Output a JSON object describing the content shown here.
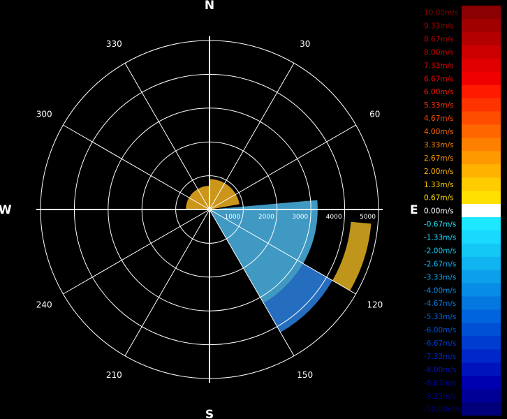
{
  "chart_data": {
    "type": "polar-heatmap",
    "cardinals": [
      "N",
      "E",
      "S",
      "W"
    ],
    "azimuth_labels": [
      "30",
      "60",
      "120",
      "150",
      "210",
      "240",
      "300",
      "330"
    ],
    "range_rings": [
      "1000",
      "2000",
      "3000",
      "4000",
      "5000"
    ],
    "range_max": 5000,
    "legend": {
      "labels": [
        "10.00m/s",
        "9.33m/s",
        "8.67m/s",
        "8.00m/s",
        "7.33m/s",
        "6.67m/s",
        "6.00m/s",
        "5.33m/s",
        "4.67m/s",
        "4.00m/s",
        "3.33m/s",
        "2.67m/s",
        "2.00m/s",
        "1.33m/s",
        "0.67m/s",
        "0.00m/s",
        "-0.67m/s",
        "-1.33m/s",
        "-2.00m/s",
        "-2.67m/s",
        "-3.33m/s",
        "-4.00m/s",
        "-4.67m/s",
        "-5.33m/s",
        "-6.00m/s",
        "-6.67m/s",
        "-7.33m/s",
        "-8.00m/s",
        "-8.67m/s",
        "-9.33m/s",
        "-10.00m/s"
      ],
      "colors": [
        "#8b0000",
        "#a00000",
        "#b40000",
        "#cc0000",
        "#e00000",
        "#f00000",
        "#ff1a00",
        "#ff3300",
        "#ff4d00",
        "#ff6600",
        "#ff8000",
        "#ff9900",
        "#ffb300",
        "#ffcc00",
        "#ffe000",
        "#ffffff",
        "#1ee8ff",
        "#1ad9ff",
        "#14c8f5",
        "#10b4f0",
        "#0ca0eb",
        "#088ce6",
        "#0478e0",
        "#0064dc",
        "#0050d6",
        "#003cd0",
        "#0028c8",
        "#0014bd",
        "#0000b0",
        "#000096",
        "#00007a"
      ]
    },
    "regions": [
      {
        "name": "north-receding-echo",
        "color": "#f0b020",
        "az": [
          270,
          360
        ],
        "r": [
          0,
          700
        ]
      },
      {
        "name": "north-receding-echo-2",
        "color": "#f0b020",
        "az": [
          0,
          80
        ],
        "r": [
          0,
          900
        ]
      },
      {
        "name": "southeast-approaching-echo",
        "color": "#4ab4e4",
        "az": [
          85,
          150
        ],
        "r": [
          0,
          3200
        ]
      },
      {
        "name": "southeast-outer-band",
        "color": "#2a80e0",
        "az": [
          120,
          150
        ],
        "r": [
          3200,
          4200
        ]
      },
      {
        "name": "east-outer-arc",
        "color": "#e0b020",
        "az": [
          95,
          120
        ],
        "r": [
          4200,
          4800
        ]
      }
    ]
  }
}
